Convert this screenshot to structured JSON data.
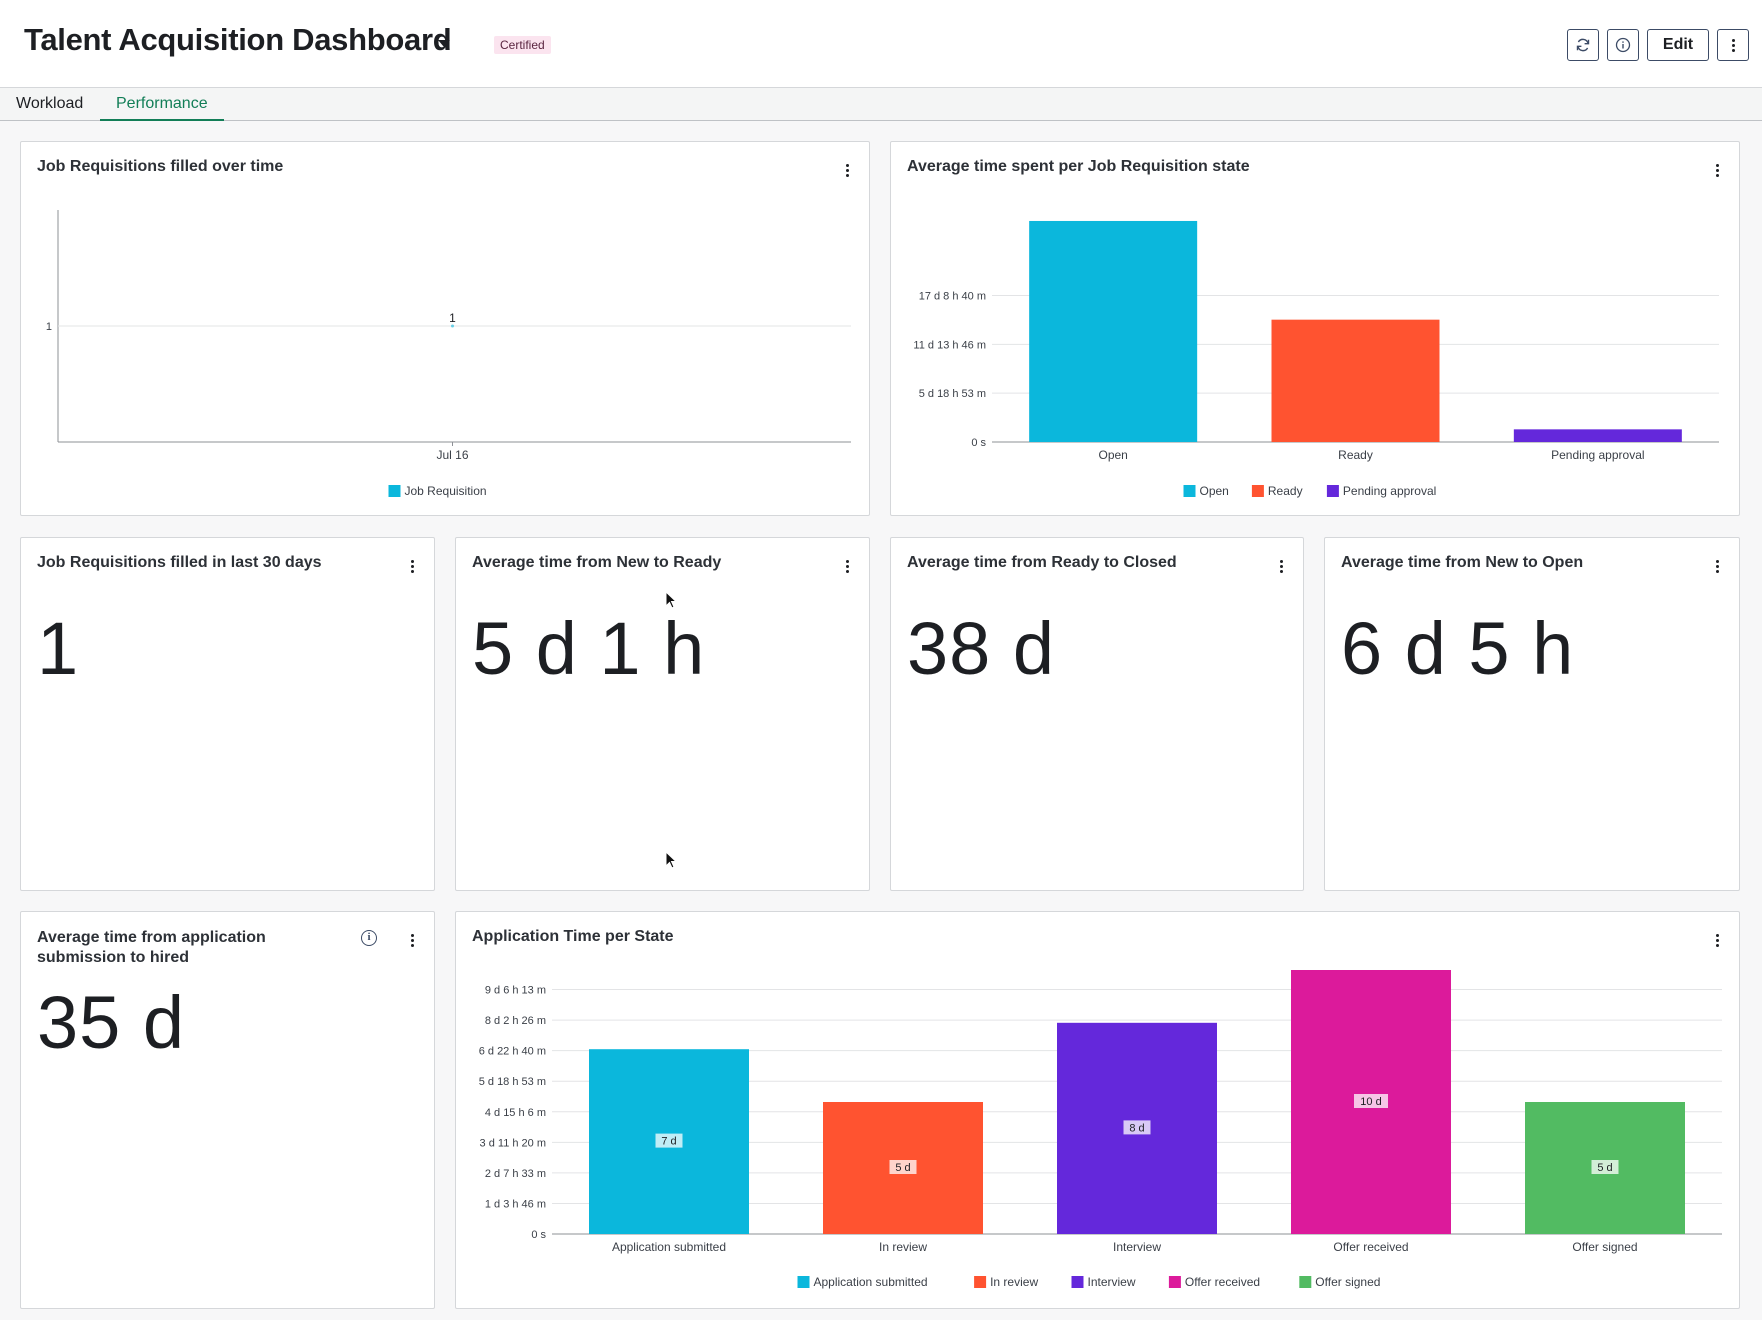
{
  "header": {
    "title": "Talent Acquisition Dashboard",
    "badge": "Certified",
    "edit_label": "Edit"
  },
  "tabs": [
    {
      "label": "Workload",
      "active": false
    },
    {
      "label": "Performance",
      "active": true
    }
  ],
  "colors": {
    "cyan": "#0bb7dc",
    "orange": "#ff5330",
    "purple": "#6428db",
    "magenta": "#dc1a9b",
    "green": "#52bb62",
    "accent": "#127e57"
  },
  "cards": {
    "filled_over_time": {
      "title": "Job Requisitions filled over time"
    },
    "time_per_state": {
      "title": "Average time spent per Job Requisition state"
    },
    "filled_30_days": {
      "title": "Job Requisitions filled in last 30 days",
      "value": "1"
    },
    "new_to_ready": {
      "title": "Average time from New to Ready",
      "value": "5 d 1 h"
    },
    "ready_to_closed": {
      "title": "Average time from Ready to Closed",
      "value": "38 d"
    },
    "new_to_open": {
      "title": "Average time from New to Open",
      "value": "6 d 5 h"
    },
    "submission_to_hired": {
      "title": "Average time from application submission to hired",
      "value": "35 d"
    },
    "app_time_per_state": {
      "title": "Application Time per State"
    }
  },
  "chart_data": [
    {
      "type": "line",
      "title": "Job Requisitions filled over time",
      "x": [
        "Jul 16"
      ],
      "series": [
        {
          "name": "Job Requisition",
          "values": [
            1
          ],
          "data_labels": [
            "1"
          ]
        }
      ],
      "yticks": [
        "1"
      ],
      "ylim": [
        0,
        2
      ],
      "grid": true,
      "legend": "bottom"
    },
    {
      "type": "bar",
      "title": "Average time spent per Job Requisition state",
      "categories": [
        "Open",
        "Ready",
        "Pending approval"
      ],
      "values_days": [
        26.2,
        14.5,
        1.5
      ],
      "yticks": [
        "0 s",
        "5 d 18 h 53 m",
        "11 d 13 h 46 m",
        "17 d 8 h 40 m"
      ],
      "ytick_values_days": [
        0,
        5.787,
        11.574,
        17.361
      ],
      "ylim_days": [
        0,
        27.5
      ],
      "series_names": [
        "Open",
        "Ready",
        "Pending approval"
      ],
      "grid": true,
      "legend": "bottom"
    },
    {
      "type": "bar",
      "title": "Application Time per State",
      "categories": [
        "Application submitted",
        "In review",
        "Interview",
        "Offer received",
        "Offer signed"
      ],
      "values_days": [
        7.0,
        5.0,
        8.0,
        10.0,
        5.0
      ],
      "data_labels": [
        "7 d",
        "5 d",
        "8 d",
        "10 d",
        "5 d"
      ],
      "yticks": [
        "0 s",
        "1 d 3 h 46 m",
        "2 d 7 h 33 m",
        "3 d 11 h 20 m",
        "4 d 15 h 6 m",
        "5 d 18 h 53 m",
        "6 d 22 h 40 m",
        "8 d 2 h 26 m",
        "9 d 6 h 13 m"
      ],
      "ytick_values_days": [
        0,
        1.157,
        2.315,
        3.472,
        4.63,
        5.787,
        6.944,
        8.102,
        9.259
      ],
      "ylim_days": [
        0,
        10.0
      ],
      "series_names": [
        "Application submitted",
        "In review",
        "Interview",
        "Offer received",
        "Offer signed"
      ],
      "grid": true,
      "legend": "bottom"
    }
  ]
}
